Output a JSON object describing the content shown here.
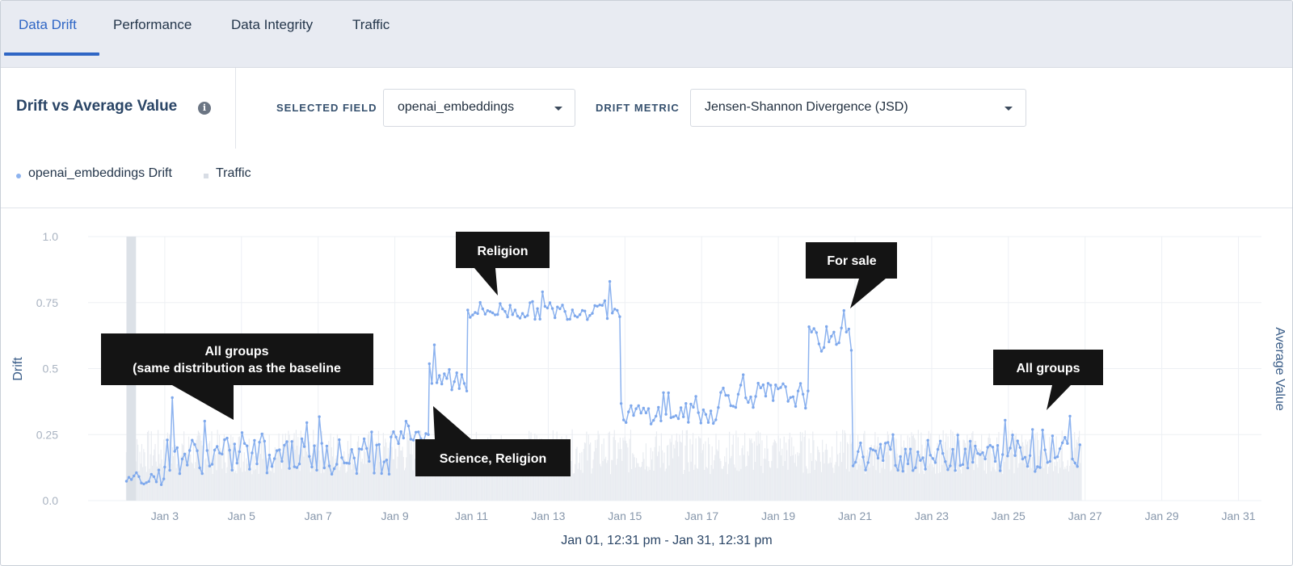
{
  "tabs": [
    {
      "label": "Data Drift",
      "active": true
    },
    {
      "label": "Performance",
      "active": false
    },
    {
      "label": "Data Integrity",
      "active": false
    },
    {
      "label": "Traffic",
      "active": false
    }
  ],
  "panel": {
    "title": "Drift vs Average Value",
    "info_icon": "info-icon"
  },
  "controls": {
    "selected_field_label": "SELECTED FIELD",
    "selected_field_value": "openai_embeddings",
    "drift_metric_label": "DRIFT METRIC",
    "drift_metric_value": "Jensen-Shannon Divergence (JSD)"
  },
  "legend": {
    "drift": "openai_embeddings Drift",
    "traffic": "Traffic"
  },
  "colors": {
    "accent": "#2f66c5",
    "drift_line": "#8db3ef",
    "traffic_bar": "#e6e9ee",
    "callout_bg": "#141414"
  },
  "chart_data": {
    "type": "line",
    "ylabel": "Drift",
    "ylabel_right": "Average Value",
    "ylim": [
      0,
      1
    ],
    "yticks": [
      "0.0",
      "0.25",
      "0.5",
      "0.75",
      "1.0"
    ],
    "ytick_values": [
      0,
      0.25,
      0.5,
      0.75,
      1.0
    ],
    "xlim_days": [
      1.0,
      31.6
    ],
    "xticks": [
      "Jan 3",
      "Jan 5",
      "Jan 7",
      "Jan 9",
      "Jan 11",
      "Jan 13",
      "Jan 15",
      "Jan 17",
      "Jan 19",
      "Jan 21",
      "Jan 23",
      "Jan 25",
      "Jan 27",
      "Jan 29",
      "Jan 31"
    ],
    "xtick_days": [
      3,
      5,
      7,
      9,
      11,
      13,
      15,
      17,
      19,
      21,
      23,
      25,
      27,
      29,
      31
    ],
    "xlabel": "Jan 01, 12:31 pm - Jan 31, 12:31 pm",
    "series": [
      {
        "name": "openai_embeddings Drift",
        "segments": [
          {
            "from_day": 2.0,
            "to_day": 3.0,
            "mean": 0.09,
            "spread": 0.03
          },
          {
            "from_day": 3.0,
            "to_day": 8.9,
            "mean": 0.17,
            "spread": 0.07
          },
          {
            "from_day": 8.9,
            "to_day": 9.9,
            "mean": 0.26,
            "spread": 0.05
          },
          {
            "from_day": 9.9,
            "to_day": 10.9,
            "mean": 0.46,
            "spread": 0.06
          },
          {
            "from_day": 10.9,
            "to_day": 14.9,
            "mean": 0.72,
            "spread": 0.035
          },
          {
            "from_day": 14.9,
            "to_day": 17.5,
            "mean": 0.33,
            "spread": 0.04
          },
          {
            "from_day": 17.5,
            "to_day": 19.8,
            "mean": 0.4,
            "spread": 0.05
          },
          {
            "from_day": 19.8,
            "to_day": 20.95,
            "mean": 0.61,
            "spread": 0.05
          },
          {
            "from_day": 20.95,
            "to_day": 26.9,
            "mean": 0.17,
            "spread": 0.06
          }
        ],
        "peaks": [
          {
            "day": 3.2,
            "value": 0.39
          },
          {
            "day": 10.0,
            "value": 0.59
          },
          {
            "day": 14.6,
            "value": 0.83
          },
          {
            "day": 20.7,
            "value": 0.72
          },
          {
            "day": 26.6,
            "value": 0.32
          }
        ]
      },
      {
        "name": "Traffic",
        "from_day": 2.0,
        "to_day": 26.9,
        "baseline_start_day": 2.0,
        "baseline_end_day": 2.25
      }
    ],
    "annotations": [
      {
        "id": "all-groups-baseline",
        "lines": [
          "All groups",
          "(same distribution as the baseline"
        ]
      },
      {
        "id": "science-religion",
        "lines": [
          "Science, Religion"
        ]
      },
      {
        "id": "religion",
        "lines": [
          "Religion"
        ]
      },
      {
        "id": "for-sale",
        "lines": [
          "For sale"
        ]
      },
      {
        "id": "all-groups",
        "lines": [
          "All groups"
        ]
      }
    ]
  }
}
